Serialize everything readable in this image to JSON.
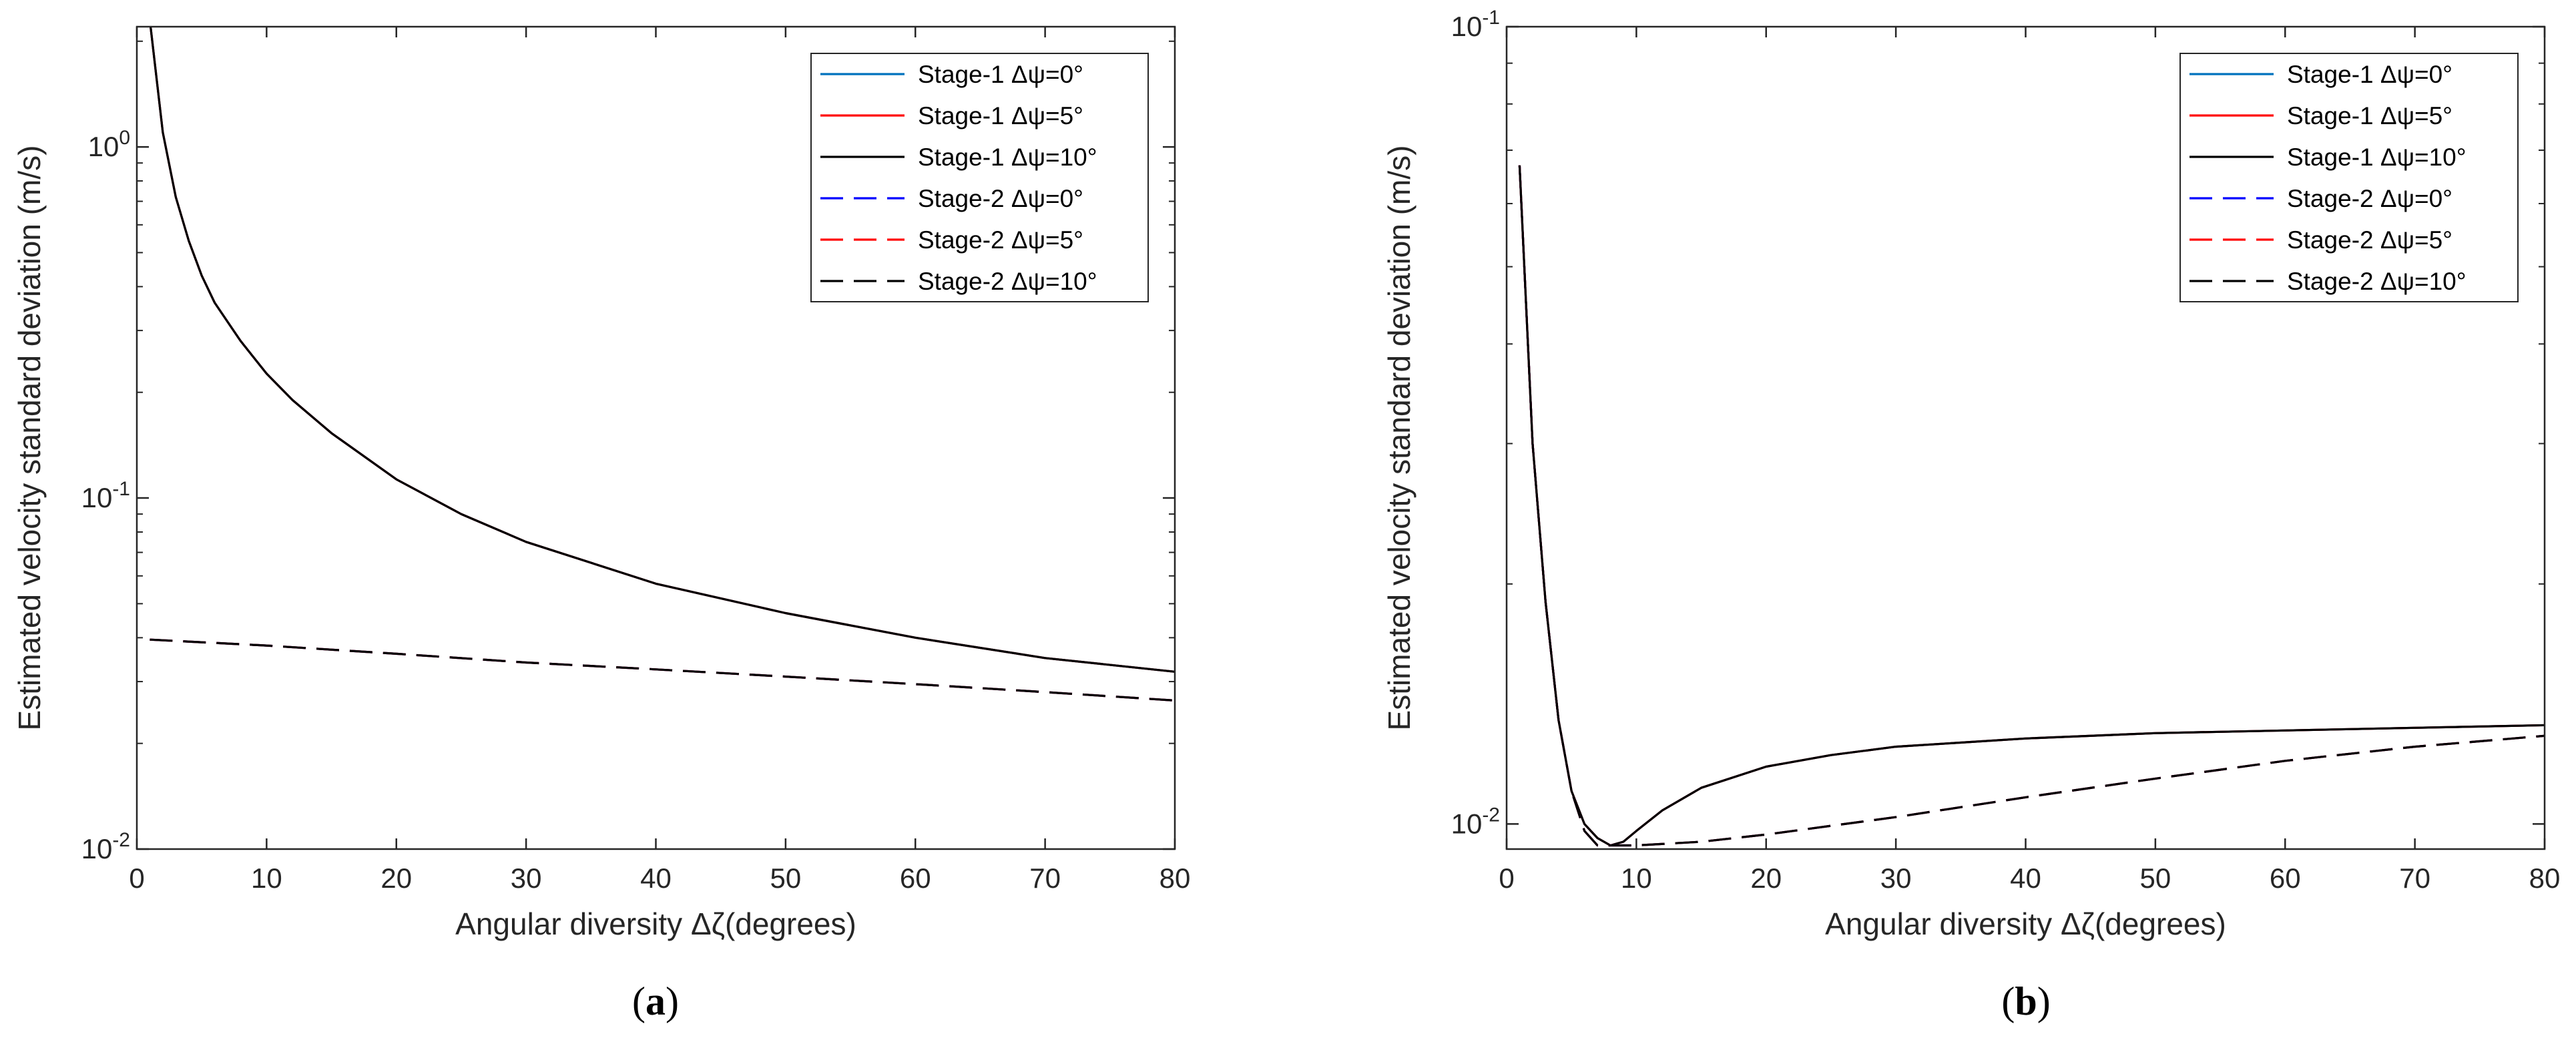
{
  "chart_data": [
    {
      "type": "line",
      "panel_label": "(a)",
      "xlabel": "Angular diversity Δζ(degrees)",
      "ylabel": "Estimated velocity standard deviation (m/s)",
      "xlim": [
        0,
        80
      ],
      "ylim": [
        0.01,
        2.2
      ],
      "yscale": "log",
      "xticks": [
        "0",
        "10",
        "20",
        "30",
        "40",
        "50",
        "60",
        "70",
        "80"
      ],
      "yticks": [
        {
          "value": 0.01,
          "base": "10",
          "exp": "-2"
        },
        {
          "value": 0.1,
          "base": "10",
          "exp": "-1"
        },
        {
          "value": 1,
          "base": "10",
          "exp": "0"
        }
      ],
      "legend_position": "top-right",
      "series": [
        {
          "name": "Stage-1 Δψ=0°",
          "color": "#0072BD",
          "dash": "solid",
          "x": [
            1,
            2,
            3,
            4,
            5,
            6,
            8,
            10,
            12,
            15,
            20,
            25,
            30,
            40,
            50,
            60,
            70,
            80
          ],
          "y": [
            2.3,
            1.1,
            0.72,
            0.54,
            0.43,
            0.36,
            0.28,
            0.226,
            0.19,
            0.153,
            0.113,
            0.09,
            0.075,
            0.057,
            0.047,
            0.04,
            0.035,
            0.032
          ]
        },
        {
          "name": "Stage-1 Δψ=5°",
          "color": "#FF0000",
          "dash": "solid",
          "x": [
            1,
            2,
            3,
            4,
            5,
            6,
            8,
            10,
            12,
            15,
            20,
            25,
            30,
            40,
            50,
            60,
            70,
            80
          ],
          "y": [
            2.3,
            1.1,
            0.72,
            0.54,
            0.43,
            0.36,
            0.28,
            0.226,
            0.19,
            0.153,
            0.113,
            0.09,
            0.075,
            0.057,
            0.047,
            0.04,
            0.035,
            0.032
          ]
        },
        {
          "name": "Stage-1 Δψ=10°",
          "color": "#000000",
          "dash": "solid",
          "x": [
            1,
            2,
            3,
            4,
            5,
            6,
            8,
            10,
            12,
            15,
            20,
            25,
            30,
            40,
            50,
            60,
            70,
            80
          ],
          "y": [
            2.3,
            1.1,
            0.72,
            0.54,
            0.43,
            0.36,
            0.28,
            0.226,
            0.19,
            0.153,
            0.113,
            0.09,
            0.075,
            0.057,
            0.047,
            0.04,
            0.035,
            0.032
          ]
        },
        {
          "name": "Stage-2 Δψ=0°",
          "color": "#0000FF",
          "dash": "dashed",
          "x": [
            1,
            10,
            20,
            30,
            40,
            50,
            60,
            70,
            80
          ],
          "y": [
            0.0395,
            0.038,
            0.036,
            0.034,
            0.0325,
            0.031,
            0.0295,
            0.028,
            0.0265
          ]
        },
        {
          "name": "Stage-2 Δψ=5°",
          "color": "#FF0000",
          "dash": "dashed",
          "x": [
            1,
            10,
            20,
            30,
            40,
            50,
            60,
            70,
            80
          ],
          "y": [
            0.0395,
            0.038,
            0.036,
            0.034,
            0.0325,
            0.031,
            0.0295,
            0.028,
            0.0265
          ]
        },
        {
          "name": "Stage-2 Δψ=10°",
          "color": "#000000",
          "dash": "dashed",
          "x": [
            1,
            10,
            20,
            30,
            40,
            50,
            60,
            70,
            80
          ],
          "y": [
            0.0395,
            0.038,
            0.036,
            0.034,
            0.0325,
            0.031,
            0.0295,
            0.028,
            0.0265
          ]
        }
      ]
    },
    {
      "type": "line",
      "panel_label": "(b)",
      "xlabel": "Angular diversity Δζ(degrees)",
      "ylabel": "Estimated velocity standard deviation (m/s)",
      "xlim": [
        0,
        80
      ],
      "ylim": [
        0.0093,
        0.1
      ],
      "yscale": "log",
      "xticks": [
        "0",
        "10",
        "20",
        "30",
        "40",
        "50",
        "60",
        "70",
        "80"
      ],
      "yticks": [
        {
          "value": 0.01,
          "base": "10",
          "exp": "-2"
        },
        {
          "value": 0.1,
          "base": "10",
          "exp": "-1"
        }
      ],
      "legend_position": "top-right",
      "series": [
        {
          "name": "Stage-1 Δψ=0°",
          "color": "#0072BD",
          "dash": "solid",
          "x": [
            1,
            2,
            3,
            4,
            5,
            6,
            7,
            8,
            9,
            10,
            12,
            15,
            20,
            25,
            30,
            40,
            50,
            60,
            70,
            80
          ],
          "y": [
            0.067,
            0.03,
            0.019,
            0.0135,
            0.011,
            0.01,
            0.0096,
            0.0094,
            0.0095,
            0.0098,
            0.0104,
            0.0111,
            0.0118,
            0.0122,
            0.0125,
            0.0128,
            0.013,
            0.0131,
            0.0132,
            0.0133
          ]
        },
        {
          "name": "Stage-1 Δψ=5°",
          "color": "#FF0000",
          "dash": "solid",
          "x": [
            1,
            2,
            3,
            4,
            5,
            6,
            7,
            8,
            9,
            10,
            12,
            15,
            20,
            25,
            30,
            40,
            50,
            60,
            70,
            80
          ],
          "y": [
            0.067,
            0.03,
            0.019,
            0.0135,
            0.011,
            0.01,
            0.0096,
            0.0094,
            0.0095,
            0.0098,
            0.0104,
            0.0111,
            0.0118,
            0.0122,
            0.0125,
            0.0128,
            0.013,
            0.0131,
            0.0132,
            0.0133
          ]
        },
        {
          "name": "Stage-1 Δψ=10°",
          "color": "#000000",
          "dash": "solid",
          "x": [
            1,
            2,
            3,
            4,
            5,
            6,
            7,
            8,
            9,
            10,
            12,
            15,
            20,
            25,
            30,
            40,
            50,
            60,
            70,
            80
          ],
          "y": [
            0.067,
            0.03,
            0.019,
            0.0135,
            0.011,
            0.01,
            0.0096,
            0.0094,
            0.0095,
            0.0098,
            0.0104,
            0.0111,
            0.0118,
            0.0122,
            0.0125,
            0.0128,
            0.013,
            0.0131,
            0.0132,
            0.0133
          ]
        },
        {
          "name": "Stage-2 Δψ=0°",
          "color": "#0000FF",
          "dash": "dashed",
          "x": [
            1,
            2,
            3,
            4,
            5,
            6,
            7,
            8,
            10,
            15,
            20,
            30,
            40,
            50,
            60,
            70,
            80
          ],
          "y": [
            0.067,
            0.03,
            0.019,
            0.0135,
            0.011,
            0.0098,
            0.0094,
            0.0094,
            0.0094,
            0.0095,
            0.0097,
            0.0102,
            0.0108,
            0.0114,
            0.012,
            0.0125,
            0.0129
          ]
        },
        {
          "name": "Stage-2 Δψ=5°",
          "color": "#FF0000",
          "dash": "dashed",
          "x": [
            1,
            2,
            3,
            4,
            5,
            6,
            7,
            8,
            10,
            15,
            20,
            30,
            40,
            50,
            60,
            70,
            80
          ],
          "y": [
            0.067,
            0.03,
            0.019,
            0.0135,
            0.011,
            0.0098,
            0.0094,
            0.0094,
            0.0094,
            0.0095,
            0.0097,
            0.0102,
            0.0108,
            0.0114,
            0.012,
            0.0125,
            0.0129
          ]
        },
        {
          "name": "Stage-2 Δψ=10°",
          "color": "#000000",
          "dash": "dashed",
          "x": [
            1,
            2,
            3,
            4,
            5,
            6,
            7,
            8,
            10,
            15,
            20,
            30,
            40,
            50,
            60,
            70,
            80
          ],
          "y": [
            0.067,
            0.03,
            0.019,
            0.0135,
            0.011,
            0.0098,
            0.0094,
            0.0094,
            0.0094,
            0.0095,
            0.0097,
            0.0102,
            0.0108,
            0.0114,
            0.012,
            0.0125,
            0.0129
          ]
        }
      ]
    }
  ]
}
